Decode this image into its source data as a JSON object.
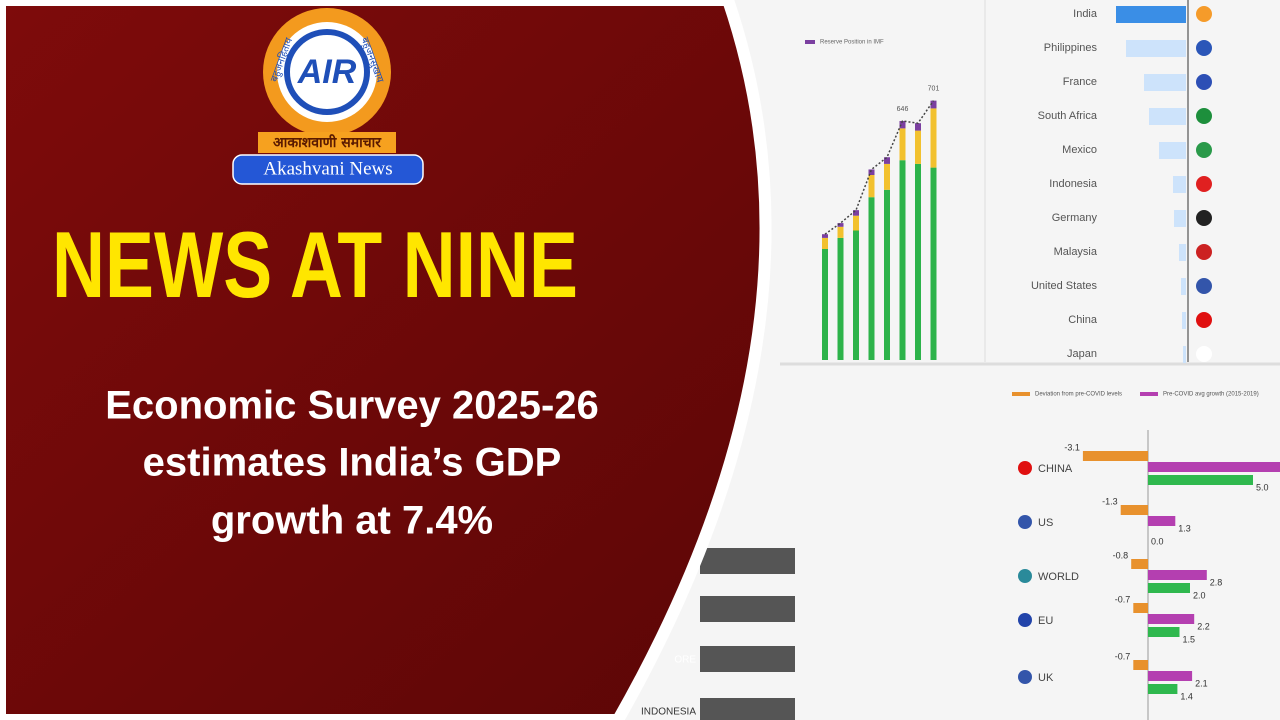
{
  "logo": {
    "emblem": "AIR",
    "motto_left": "बहुजनहिताय",
    "motto_right": "बहुजनसुखाय",
    "banner": "आकाशवाणी समाचार",
    "name": "Akashvani News"
  },
  "headline": "NEWS AT NINE",
  "subtitle_lines": [
    "Economic Survey 2025-26",
    "estimates India’s GDP",
    "growth at 7.4%"
  ],
  "background": {
    "reserves_chart": {
      "legend": "Reserve Position in IMF",
      "series": [
        {
          "color": "#2db34a",
          "values": [
            300,
            330,
            350,
            440,
            460,
            540,
            530,
            520
          ]
        },
        {
          "color": "#f2c12e",
          "values": [
            30,
            30,
            40,
            60,
            70,
            86,
            90,
            160
          ]
        },
        {
          "color": "#7b3fa0",
          "values": [
            10,
            10,
            15,
            15,
            18,
            20,
            20,
            21
          ]
        }
      ],
      "labels": [
        {
          "index": 5,
          "value": 646
        },
        {
          "index": 7,
          "value": 701
        }
      ]
    },
    "country_chart": {
      "countries": [
        "India",
        "Philippines",
        "France",
        "South Africa",
        "Mexico",
        "Indonesia",
        "Germany",
        "Malaysia",
        "United States",
        "China",
        "Japan"
      ],
      "values": [
        70,
        60,
        42,
        37,
        27,
        13,
        12,
        7,
        5,
        4,
        3
      ]
    },
    "growth_chart": {
      "legend": [
        "Deviation from pre-COVID levels",
        "Pre-COVID avg growth (2015-2019)"
      ],
      "colors": [
        "#e8912d",
        "#b43fb0",
        "#2fb84e"
      ],
      "rows": [
        {
          "name": "CHINA",
          "values": [
            -3.1,
            null,
            5.0
          ],
          "value_labels": [
            "-3.1",
            null,
            "5.0"
          ]
        },
        {
          "name": "US",
          "values": [
            -1.3,
            1.3,
            0.0
          ],
          "value_labels": [
            "-1.3",
            "1.3",
            "0.0"
          ]
        },
        {
          "name": "WORLD",
          "values": [
            -0.8,
            2.8,
            2.0
          ],
          "value_labels": [
            "-0.8",
            "2.8",
            "2.0"
          ]
        },
        {
          "name": "EU",
          "values": [
            -0.7,
            2.2,
            1.5
          ],
          "value_labels": [
            "-0.7",
            "2.2",
            "1.5"
          ]
        },
        {
          "name": "UK",
          "values": [
            -0.7,
            2.1,
            1.4
          ],
          "value_labels": [
            "-0.7",
            "2.1",
            "1.4"
          ]
        }
      ]
    },
    "lower_left": [
      "ORE",
      "INDONESIA"
    ]
  }
}
